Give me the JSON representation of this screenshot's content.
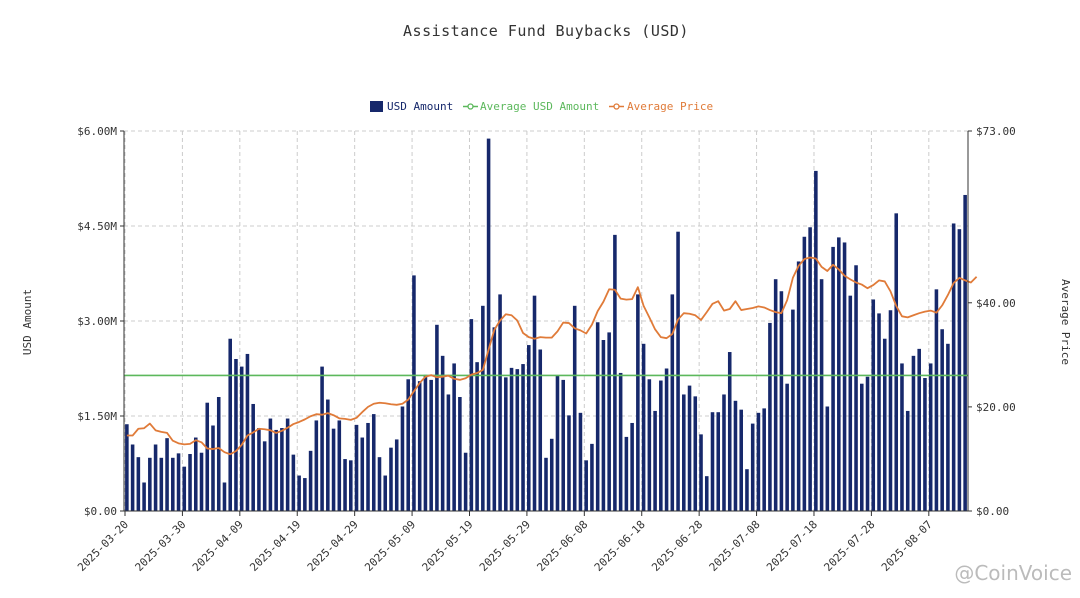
{
  "chart_data": {
    "type": "bar",
    "title": "Assistance Fund Buybacks (USD)",
    "ylabel": "USD Amount",
    "y2label": "Average Price",
    "ylim": [
      0,
      6.0
    ],
    "y2lim": [
      0,
      73
    ],
    "left_ticks": [
      "$0.00",
      "$1.50M",
      "$3.00M",
      "$4.50M",
      "$6.00M"
    ],
    "right_ticks": [
      "$0.00",
      "$20.00",
      "$40.00",
      "$73.00"
    ],
    "right_tick_values": [
      0,
      20,
      40,
      73
    ],
    "x_ticks": [
      "2025-03-20",
      "2025-03-30",
      "2025-04-09",
      "2025-04-19",
      "2025-04-29",
      "2025-05-09",
      "2025-05-19",
      "2025-05-29",
      "2025-06-08",
      "2025-06-18",
      "2025-06-28",
      "2025-07-08",
      "2025-07-18",
      "2025-07-28",
      "2025-08-07"
    ],
    "x_tick_every": 10,
    "legend": [
      {
        "name": "USD Amount",
        "color": "#16286b",
        "kind": "bar"
      },
      {
        "name": "Average USD Amount",
        "color": "#5cb85c",
        "kind": "line"
      },
      {
        "name": "Average Price",
        "color": "#e07b39",
        "kind": "line"
      }
    ],
    "average_usd_amount": 2.14,
    "series": [
      {
        "name": "USD Amount",
        "unit": "millions USD",
        "values": [
          1.37,
          1.05,
          0.85,
          0.45,
          0.84,
          1.05,
          0.84,
          1.15,
          0.84,
          0.91,
          0.7,
          0.9,
          1.16,
          0.92,
          1.71,
          1.35,
          1.8,
          0.45,
          2.72,
          2.4,
          2.28,
          2.48,
          1.69,
          1.31,
          1.1,
          1.46,
          1.28,
          1.31,
          1.46,
          0.89,
          0.56,
          0.52,
          0.95,
          1.43,
          2.28,
          1.76,
          1.3,
          1.43,
          0.82,
          0.8,
          1.36,
          1.16,
          1.39,
          1.53,
          0.85,
          0.56,
          1.0,
          1.13,
          1.65,
          2.08,
          3.72,
          2.05,
          2.15,
          2.07,
          2.94,
          2.45,
          1.84,
          2.33,
          1.8,
          0.92,
          3.03,
          2.35,
          3.24,
          5.88,
          2.9,
          3.42,
          2.11,
          2.26,
          2.24,
          2.32,
          2.62,
          3.4,
          2.55,
          0.84,
          1.14,
          2.14,
          2.07,
          1.51,
          3.24,
          1.55,
          0.8,
          1.06,
          2.98,
          2.7,
          2.82,
          4.36,
          2.18,
          1.17,
          1.39,
          3.42,
          2.64,
          2.08,
          1.58,
          2.06,
          2.25,
          3.42,
          4.41,
          1.84,
          1.98,
          1.81,
          1.21,
          0.55,
          1.56,
          1.56,
          1.84,
          2.51,
          1.74,
          1.6,
          0.66,
          1.38,
          1.55,
          1.62,
          2.97,
          3.66,
          3.47,
          2.01,
          3.18,
          3.94,
          4.33,
          4.48,
          5.37,
          3.66,
          1.65,
          4.17,
          4.32,
          4.24,
          3.4,
          3.88,
          2.01,
          2.12,
          3.34,
          3.12,
          2.72,
          3.17,
          4.7,
          2.33,
          1.58,
          2.45,
          2.56,
          2.1,
          2.33,
          3.5,
          2.87,
          2.64,
          4.54,
          4.45,
          4.99
        ]
      },
      {
        "name": "Average Price",
        "unit": "USD",
        "values": [
          14.5,
          14.5,
          15.8,
          15.9,
          16.8,
          15.5,
          15.2,
          15.0,
          13.5,
          13.0,
          12.8,
          12.9,
          13.6,
          13.2,
          12.0,
          11.9,
          12.1,
          11.3,
          10.9,
          11.5,
          12.7,
          14.5,
          15.1,
          15.8,
          15.7,
          15.5,
          15.0,
          15.4,
          16.0,
          16.7,
          17.1,
          17.6,
          18.2,
          18.6,
          18.5,
          18.8,
          18.4,
          17.8,
          17.7,
          17.5,
          17.9,
          19.0,
          20.0,
          20.6,
          20.8,
          20.7,
          20.5,
          20.4,
          20.6,
          21.4,
          23.0,
          24.6,
          25.8,
          26.1,
          25.7,
          25.8,
          26.0,
          25.4,
          25.2,
          25.5,
          26.2,
          26.5,
          27.1,
          31.0,
          34.8,
          36.6,
          37.8,
          37.6,
          36.6,
          34.2,
          33.4,
          33.1,
          33.4,
          33.3,
          33.3,
          34.5,
          36.2,
          36.1,
          35.1,
          34.7,
          34.1,
          35.8,
          38.4,
          40.2,
          42.6,
          42.5,
          40.8,
          40.6,
          40.7,
          43.0,
          39.4,
          37.2,
          34.9,
          33.4,
          33.2,
          34.0,
          36.8,
          38.0,
          37.9,
          37.6,
          36.7,
          38.2,
          39.8,
          40.3,
          38.5,
          38.8,
          40.3,
          38.6,
          38.8,
          39.0,
          39.3,
          39.1,
          38.6,
          38.2,
          38.0,
          40.5,
          44.8,
          47.1,
          48.4,
          48.7,
          48.5,
          46.9,
          46.1,
          47.3,
          46.4,
          45.2,
          44.5,
          43.9,
          43.5,
          42.8,
          43.4,
          44.3,
          44.1,
          42.2,
          39.4,
          37.4,
          37.2,
          37.6,
          38.0,
          38.3,
          38.5,
          38.1,
          39.5,
          41.5,
          43.8,
          44.8,
          44.3,
          43.9,
          45.0
        ]
      }
    ]
  },
  "watermark": "@CoinVoice"
}
